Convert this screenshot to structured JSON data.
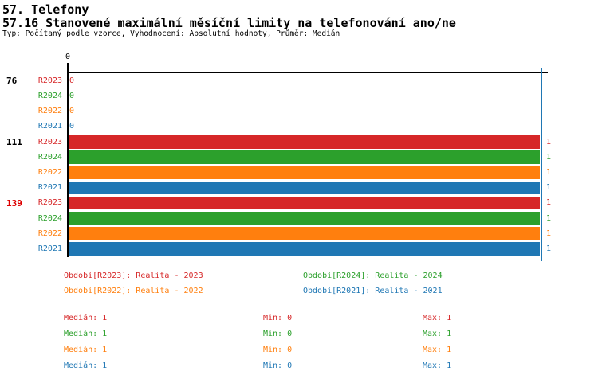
{
  "header": {
    "title": "57. Telefony",
    "subtitle": "57.16 Stanovené maximální měsíční limity na telefonování ano/ne",
    "meta": "Typ: Počítaný podle vzorce, Vyhodnocení: Absolutní hodnoty, Průměr: Medián"
  },
  "colors": {
    "R2023": "#d62728",
    "R2024": "#2ca02c",
    "R2022": "#ff7f0e",
    "R2021": "#1f77b4",
    "highlighted_group_label": "#dd0000",
    "axis": "#000000",
    "median_line": "#1f77b4"
  },
  "chart_data": {
    "type": "bar",
    "orientation": "horizontal",
    "x_axis": {
      "origin_label": "0",
      "min": 0,
      "max": 1,
      "grid": false
    },
    "median_line_x": 1,
    "series_order": [
      "R2023",
      "R2024",
      "R2022",
      "R2021"
    ],
    "groups": [
      {
        "label": "76",
        "highlighted": false,
        "rows": [
          {
            "series": "R2023",
            "value": 0
          },
          {
            "series": "R2024",
            "value": 0
          },
          {
            "series": "R2022",
            "value": 0
          },
          {
            "series": "R2021",
            "value": 0
          }
        ]
      },
      {
        "label": "111",
        "highlighted": false,
        "rows": [
          {
            "series": "R2023",
            "value": 1
          },
          {
            "series": "R2024",
            "value": 1
          },
          {
            "series": "R2022",
            "value": 1
          },
          {
            "series": "R2021",
            "value": 1
          }
        ]
      },
      {
        "label": "139",
        "highlighted": true,
        "rows": [
          {
            "series": "R2023",
            "value": 1
          },
          {
            "series": "R2024",
            "value": 1
          },
          {
            "series": "R2022",
            "value": 1
          },
          {
            "series": "R2021",
            "value": 1
          }
        ]
      }
    ]
  },
  "legend": [
    {
      "series": "R2023",
      "label": "Období[R2023]: Realita - 2023"
    },
    {
      "series": "R2024",
      "label": "Období[R2024]: Realita - 2024"
    },
    {
      "series": "R2022",
      "label": "Období[R2022]: Realita - 2022"
    },
    {
      "series": "R2021",
      "label": "Období[R2021]: Realita - 2021"
    }
  ],
  "stats": [
    {
      "series": "R2023",
      "median_text": "Medián: 1",
      "min_text": "Min: 0",
      "max_text": "Max: 1"
    },
    {
      "series": "R2024",
      "median_text": "Medián: 1",
      "min_text": "Min: 0",
      "max_text": "Max: 1"
    },
    {
      "series": "R2022",
      "median_text": "Medián: 1",
      "min_text": "Min: 0",
      "max_text": "Max: 1"
    },
    {
      "series": "R2021",
      "median_text": "Medián: 1",
      "min_text": "Min: 0",
      "max_text": "Max: 1"
    }
  ]
}
